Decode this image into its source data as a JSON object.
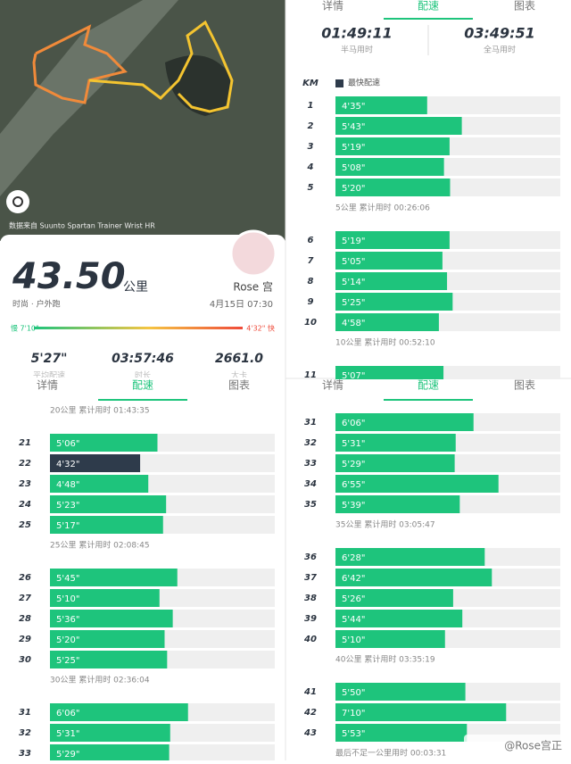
{
  "map": {
    "caption": "数据来自 Suunto Spartan Trainer Wrist HR"
  },
  "summary": {
    "distance": "43.50",
    "unit": "公里",
    "sport": "时尚 · 户外跑",
    "name": "Rose 宫",
    "date": "4月15日 07:30",
    "slow_label": "慢 7'10\"",
    "fast_label": "4'32\" 快",
    "stats": [
      {
        "value": "5'27\"",
        "label": "平均配速"
      },
      {
        "value": "03:57:46",
        "label": "时长"
      },
      {
        "value": "2661.0",
        "label": "大卡"
      }
    ]
  },
  "tabs": [
    "详情",
    "配速",
    "图表"
  ],
  "splits": {
    "half_time": "01:49:11",
    "half_label": "半马用时",
    "full_time": "03:49:51",
    "full_label": "全马用时",
    "km_header": "KM",
    "legend": "最快配速"
  },
  "colors": {
    "bar": "#1ec47c",
    "fastest": "#2e3b4b",
    "track": "#efefef",
    "accent": "#1ec47c"
  },
  "panels": [
    {
      "items": [
        {
          "km": 1,
          "pace": "4'35\""
        },
        {
          "km": 2,
          "pace": "5'43\""
        },
        {
          "km": 3,
          "pace": "5'19\""
        },
        {
          "km": 4,
          "pace": "5'08\""
        },
        {
          "km": 5,
          "pace": "5'20\""
        },
        {
          "note": "5公里 累计用时 00:26:06"
        },
        {
          "km": 6,
          "pace": "5'19\""
        },
        {
          "km": 7,
          "pace": "5'05\""
        },
        {
          "km": 8,
          "pace": "5'14\""
        },
        {
          "km": 9,
          "pace": "5'25\""
        },
        {
          "km": 10,
          "pace": "4'58\""
        },
        {
          "note": "10公里 累计用时 00:52:10"
        },
        {
          "km": 11,
          "pace": "5'07\""
        }
      ]
    },
    {
      "items": [
        {
          "note": "20公里 累计用时 01:43:35"
        },
        {
          "km": 21,
          "pace": "5'06\""
        },
        {
          "km": 22,
          "pace": "4'32\"",
          "fastest": true
        },
        {
          "km": 23,
          "pace": "4'48\""
        },
        {
          "km": 24,
          "pace": "5'23\""
        },
        {
          "km": 25,
          "pace": "5'17\""
        },
        {
          "note": "25公里 累计用时 02:08:45"
        },
        {
          "km": 26,
          "pace": "5'45\""
        },
        {
          "km": 27,
          "pace": "5'10\""
        },
        {
          "km": 28,
          "pace": "5'36\""
        },
        {
          "km": 29,
          "pace": "5'20\""
        },
        {
          "km": 30,
          "pace": "5'25\""
        },
        {
          "note": "30公里 累计用时 02:36:04"
        },
        {
          "km": 31,
          "pace": "6'06\""
        },
        {
          "km": 32,
          "pace": "5'31\""
        },
        {
          "km": 33,
          "pace": "5'29\""
        }
      ]
    },
    {
      "items": [
        {
          "km": 31,
          "pace": "6'06\""
        },
        {
          "km": 32,
          "pace": "5'31\""
        },
        {
          "km": 33,
          "pace": "5'29\""
        },
        {
          "km": 34,
          "pace": "6'55\""
        },
        {
          "km": 35,
          "pace": "5'39\""
        },
        {
          "note": "35公里 累计用时 03:05:47"
        },
        {
          "km": 36,
          "pace": "6'28\""
        },
        {
          "km": 37,
          "pace": "6'42\""
        },
        {
          "km": 38,
          "pace": "5'26\""
        },
        {
          "km": 39,
          "pace": "5'44\""
        },
        {
          "km": 40,
          "pace": "5'10\""
        },
        {
          "note": "40公里 累计用时 03:35:19"
        },
        {
          "km": 41,
          "pace": "5'50\""
        },
        {
          "km": 42,
          "pace": "7'10\""
        },
        {
          "km": 43,
          "pace": "5'53\""
        },
        {
          "note": "最后不足一公里用时 00:03:31"
        }
      ]
    }
  ],
  "watermark": "@Rose宫正"
}
